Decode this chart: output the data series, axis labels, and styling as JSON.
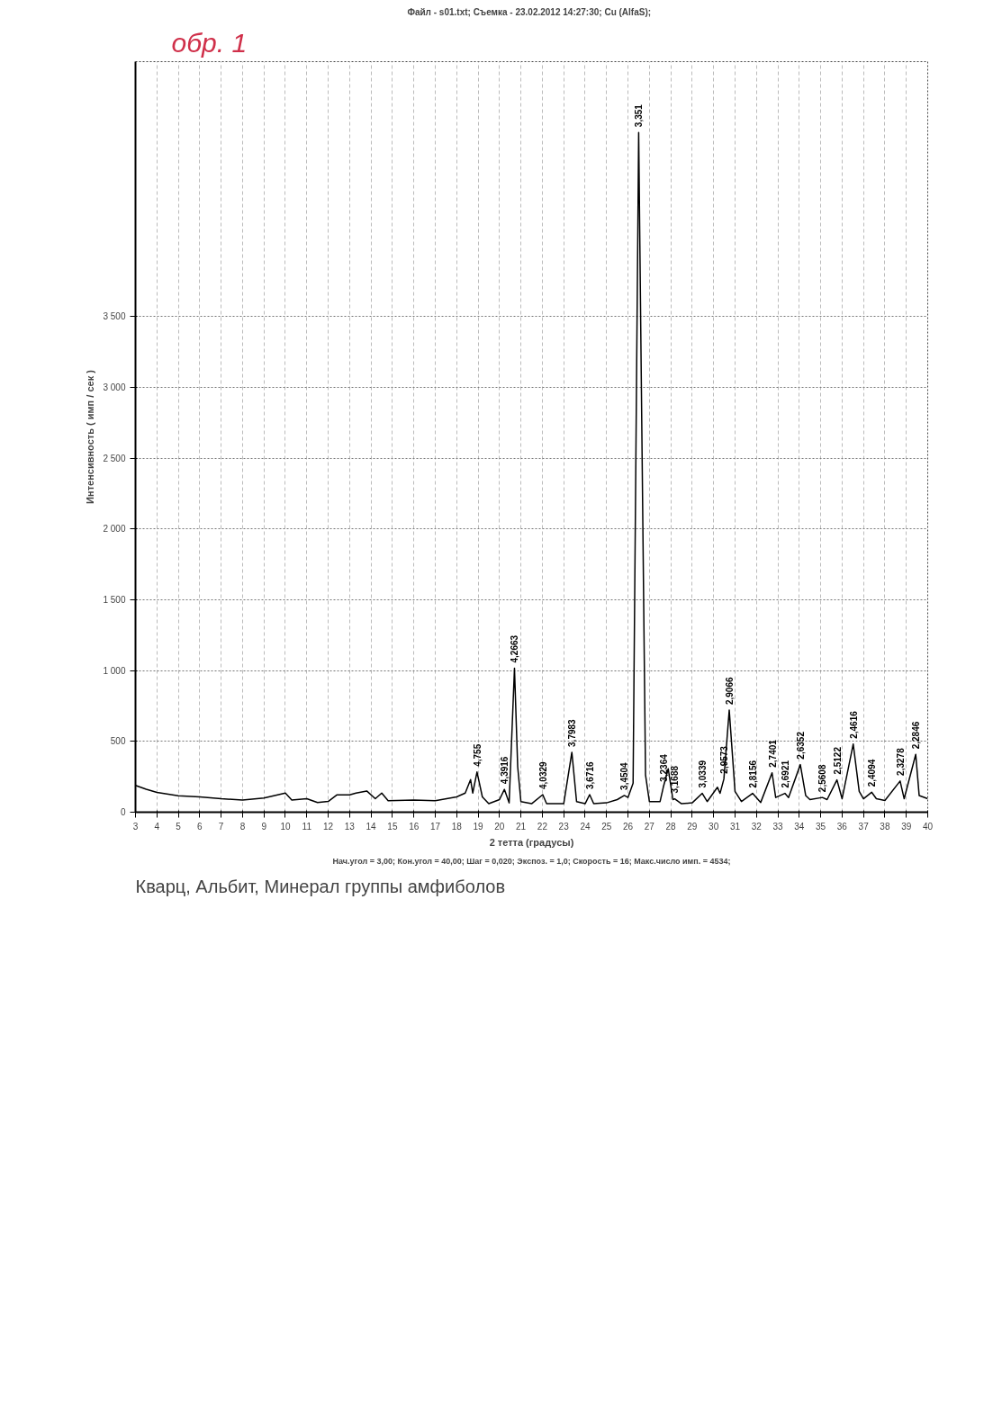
{
  "chart_data": {
    "type": "line",
    "title": "Файл - s01.txt;  Съемка - 23.02.2012 14:27:30;  Cu (AlfaS);",
    "xlabel": "2 тетта (градусы)",
    "ylabel": "Интенсивность ( имп / сек )",
    "x": [
      3,
      3.5,
      4,
      5,
      6,
      7,
      8,
      9,
      10,
      10.3,
      11,
      11.5,
      12,
      12.4,
      13,
      13.3,
      13.8,
      14.2,
      14.5,
      14.8,
      16,
      17,
      18,
      18.4,
      18.65,
      18.75,
      18.95,
      19.2,
      19.5,
      20.0,
      20.23,
      20.45,
      20.7,
      20.85,
      21.0,
      21.5,
      22.02,
      22.2,
      23.0,
      23.38,
      23.6,
      24.0,
      24.21,
      24.4,
      25.0,
      25.5,
      25.83,
      26.0,
      26.24,
      26.5,
      26.82,
      27.0,
      27.5,
      27.65,
      27.88,
      28.1,
      28.18,
      28.5,
      29.0,
      29.47,
      29.7,
      30.18,
      30.3,
      30.48,
      30.73,
      31.0,
      31.3,
      31.82,
      32.2,
      32.73,
      32.9,
      33.33,
      33.5,
      34.05,
      34.3,
      34.5,
      35.08,
      35.3,
      35.76,
      36.0,
      36.52,
      36.8,
      37.0,
      37.38,
      37.6,
      38.0,
      38.71,
      38.9,
      39.44,
      39.6,
      40.0
    ],
    "series": [
      {
        "color": "#000000",
        "values": [
          189,
          162,
          140,
          116,
          108,
          95,
          86,
          100,
          135,
          86,
          95,
          68,
          76,
          122,
          122,
          135,
          150,
          95,
          135,
          81,
          86,
          81,
          108,
          135,
          230,
          135,
          284,
          108,
          60,
          89,
          161,
          66,
          1017,
          321,
          75,
          60,
          124,
          60,
          60,
          423,
          75,
          60,
          124,
          60,
          66,
          89,
          118,
          104,
          205,
          4800,
          263,
          75,
          75,
          176,
          307,
          89,
          95,
          60,
          66,
          133,
          75,
          176,
          133,
          234,
          721,
          147,
          75,
          133,
          69,
          278,
          104,
          133,
          104,
          336,
          118,
          89,
          104,
          89,
          228,
          95,
          481,
          147,
          95,
          141,
          95,
          83,
          220,
          95,
          408,
          118,
          95
        ]
      }
    ],
    "xlim": [
      3,
      40
    ],
    "ylim": [
      0,
      5300
    ],
    "xticks": [
      3,
      4,
      5,
      6,
      7,
      8,
      9,
      10,
      11,
      12,
      13,
      14,
      15,
      16,
      17,
      18,
      19,
      20,
      21,
      22,
      23,
      24,
      25,
      26,
      27,
      28,
      29,
      30,
      31,
      32,
      33,
      34,
      35,
      36,
      37,
      38,
      39,
      40
    ],
    "yticks": [
      0,
      500,
      {
        "value": 1000,
        "label": "1 000"
      },
      {
        "value": 1500,
        "label": "1 500"
      },
      {
        "value": 2000,
        "label": "2 000"
      },
      {
        "value": 2500,
        "label": "2 500"
      },
      {
        "value": 3000,
        "label": "3 000"
      },
      {
        "value": 3500,
        "label": "3 500"
      }
    ],
    "grid": true,
    "annotations": [
      "обр. 1",
      "Нач.угол = 3,00; Кон.угол = 40,00; Шаг = 0,020; Экспоз. = 1,0; Скорость = 16; Макс.число имп. = 4534;",
      "Кварц, Альбит, Минерал группы амфиболов",
      {
        "text": "4,755",
        "x": 18.95,
        "y": 284
      },
      {
        "text": "4,3916",
        "x": 20.23,
        "y": 161
      },
      {
        "text": "4,2663",
        "x": 20.7,
        "y": 1017
      },
      {
        "text": "4,0329",
        "x": 22.02,
        "y": 124
      },
      {
        "text": "3,7983",
        "x": 23.38,
        "y": 423
      },
      {
        "text": "3,6716",
        "x": 24.21,
        "y": 124
      },
      {
        "text": "3,4504",
        "x": 25.83,
        "y": 118
      },
      {
        "text": "3,351",
        "x": 26.5,
        "y": 4800
      },
      {
        "text": "3,2364",
        "x": 27.65,
        "y": 176
      },
      {
        "text": "3,1688",
        "x": 28.18,
        "y": 95
      },
      {
        "text": "3,0339",
        "x": 29.47,
        "y": 133
      },
      {
        "text": "2,9573",
        "x": 30.48,
        "y": 234
      },
      {
        "text": "2,9066",
        "x": 30.73,
        "y": 721
      },
      {
        "text": "2,8156",
        "x": 31.82,
        "y": 133
      },
      {
        "text": "2,7401",
        "x": 32.73,
        "y": 278
      },
      {
        "text": "2,6921",
        "x": 33.33,
        "y": 133
      },
      {
        "text": "2,6352",
        "x": 34.05,
        "y": 336
      },
      {
        "text": "2,5608",
        "x": 35.08,
        "y": 104
      },
      {
        "text": "2,5122",
        "x": 35.76,
        "y": 228
      },
      {
        "text": "2,4616",
        "x": 36.52,
        "y": 481
      },
      {
        "text": "2,4094",
        "x": 37.38,
        "y": 141
      },
      {
        "text": "2,3278",
        "x": 38.71,
        "y": 220
      },
      {
        "text": "2,2846",
        "x": 39.44,
        "y": 408
      }
    ]
  }
}
